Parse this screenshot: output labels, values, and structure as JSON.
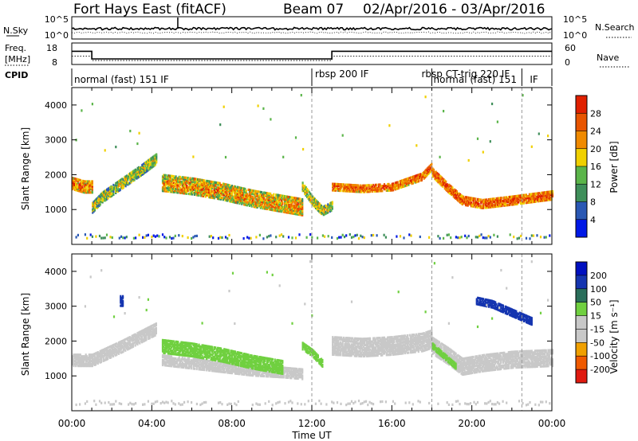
{
  "title": {
    "station": "Fort Hays East (fitACF)",
    "beam": "Beam 07",
    "dates": "02/Apr/2016 - 03/Apr/2016"
  },
  "colors": {
    "power": [
      "#0018e6",
      "#2a58b4",
      "#3f8f5a",
      "#5bb54a",
      "#f0d000",
      "#f08a00",
      "#e85500",
      "#e02000"
    ],
    "velocity": [
      "#e01a10",
      "#f05a00",
      "#f0a000",
      "#c8c8c8",
      "#c8c8c8",
      "#70d040",
      "#2a6e5a",
      "#1535b0",
      "#0010c0"
    ],
    "ground_scatter": "#c6c6c6"
  },
  "chart_data": [
    {
      "type": "line",
      "name": "nsky-nsearch",
      "ylabel_left": "N.Sky",
      "ylabel_right": "N.Search",
      "yticks_left": [
        "10^5",
        "10^0"
      ],
      "yticks_right": [
        "10^5",
        "10^0"
      ],
      "xlim": [
        0,
        24
      ]
    },
    {
      "type": "line",
      "name": "freq-nave",
      "ylabel_left": "Freq.",
      "ylabel_left_unit": "[MHz]",
      "ylabel_right": "Nave",
      "yticks_left": [
        "18",
        "8"
      ],
      "yticks_right": [
        "60",
        "0"
      ],
      "xlim": [
        0,
        24
      ],
      "ylim_left": [
        8,
        18
      ],
      "ylim_right": [
        0,
        60
      ],
      "freq": {
        "x": [
          0,
          1.0,
          1.0,
          13.0,
          13.0,
          24
        ],
        "y": [
          14.5,
          14.5,
          10.5,
          10.5,
          14.5,
          14.5
        ]
      },
      "nave": {
        "x": [
          0,
          1.0,
          1.0,
          13.0,
          13.0,
          24
        ],
        "y": [
          24,
          24,
          10,
          10,
          24,
          24
        ]
      }
    },
    {
      "type": "table",
      "name": "cpid",
      "label": "CPID",
      "segments": [
        {
          "start": 0,
          "end": 12,
          "text": "normal (fast) 151 IF"
        },
        {
          "start": 12,
          "end": 18,
          "text": "rbsp 200 IF"
        },
        {
          "start": 18,
          "end": 22.5,
          "text": "rbsp CT-trig 220 IF"
        },
        {
          "start": 18,
          "end": 22.5,
          "text": "normal (fast) 151"
        },
        {
          "start": 22.5,
          "end": 24,
          "text": "IF"
        }
      ],
      "boundaries": [
        12,
        18,
        22.5
      ]
    },
    {
      "type": "heatmap",
      "name": "power",
      "ylabel": "Slant Range [km]",
      "yticks": [
        1000,
        2000,
        3000,
        4000
      ],
      "xticks": [
        "00:00",
        "04:00",
        "08:00",
        "12:00",
        "16:00",
        "20:00",
        "00:00"
      ],
      "xlim": [
        0,
        24
      ],
      "ylim": [
        0,
        4500
      ],
      "colorbar": {
        "label": "Power [dB]",
        "ticks": [
          "28",
          "24",
          "20",
          "16",
          "12",
          "8",
          "4"
        ],
        "levels": [
          0,
          4,
          8,
          12,
          16,
          20,
          24,
          28,
          32
        ]
      },
      "dashed_x": [
        12,
        18,
        22.5
      ],
      "bands": [
        {
          "x": [
            0,
            0.3,
            0.6,
            0.9,
            1.0
          ],
          "y": [
            1800,
            1750,
            1700,
            1700,
            1700
          ],
          "w": 350,
          "v": 22,
          "spread": 8
        },
        {
          "x": [
            1.0,
            1.5,
            2.5,
            3.5,
            4.2
          ],
          "y": [
            1100,
            1400,
            1800,
            2200,
            2500
          ],
          "w": 300,
          "v": 14,
          "spread": 7
        },
        {
          "x": [
            4.5,
            6.0,
            7.5,
            9.0,
            10.5,
            11.5
          ],
          "y": [
            1800,
            1700,
            1550,
            1350,
            1200,
            1100
          ],
          "w": 450,
          "v": 20,
          "spread": 8
        },
        {
          "x": [
            11.5,
            12.0,
            12.5,
            13.0
          ],
          "y": [
            1700,
            1300,
            1000,
            1150
          ],
          "w": 250,
          "v": 16,
          "spread": 7
        },
        {
          "x": [
            13.0,
            14.5,
            16.0,
            17.5,
            18.0
          ],
          "y": [
            1700,
            1650,
            1700,
            2000,
            2300
          ],
          "w": 220,
          "v": 24,
          "spread": 6
        },
        {
          "x": [
            18.0,
            18.8,
            19.5,
            20.5,
            22.0,
            24
          ],
          "y": [
            2100,
            1650,
            1300,
            1200,
            1300,
            1450
          ],
          "w": 240,
          "v": 25,
          "spread": 6
        }
      ],
      "floor": {
        "x": [
          0,
          24
        ],
        "y": [
          200,
          320
        ],
        "v": 10
      }
    },
    {
      "type": "heatmap",
      "name": "velocity",
      "ylabel": "Slant Range [km]",
      "xlabel": "Time UT",
      "yticks": [
        1000,
        2000,
        3000,
        4000
      ],
      "xticks": [
        "00:00",
        "04:00",
        "08:00",
        "12:00",
        "16:00",
        "20:00",
        "00:00"
      ],
      "xlim": [
        0,
        24
      ],
      "ylim": [
        0,
        4500
      ],
      "colorbar": {
        "label": "Velocity [m s⁻¹]",
        "ticks": [
          "200",
          "100",
          "50",
          "15",
          "-15",
          "-50",
          "-100",
          "-200"
        ],
        "levels": [
          -250,
          -200,
          -100,
          -50,
          -15,
          15,
          50,
          100,
          200,
          250
        ]
      },
      "dashed_x": [
        12,
        18,
        22.5
      ],
      "bands": [
        {
          "x": [
            0,
            1.0,
            2.5,
            4.2
          ],
          "y": [
            1500,
            1500,
            1900,
            2400
          ],
          "w": 350,
          "v": 0,
          "spread": 10
        },
        {
          "x": [
            4.5,
            6.0,
            7.5,
            9.0,
            10.5,
            11.5
          ],
          "y": [
            1500,
            1400,
            1300,
            1200,
            1150,
            1100
          ],
          "w": 300,
          "v": 0,
          "spread": 10
        },
        {
          "x": [
            4.5,
            6.0,
            7.5,
            9.0,
            10.5
          ],
          "y": [
            1900,
            1800,
            1650,
            1450,
            1300
          ],
          "w": 400,
          "v": 40,
          "spread": 10
        },
        {
          "x": [
            11.5,
            12.0,
            12.5
          ],
          "y": [
            1900,
            1700,
            1400
          ],
          "w": 200,
          "v": 40,
          "spread": 10
        },
        {
          "x": [
            13.0,
            14.5,
            16.0,
            17.5,
            18.0
          ],
          "y": [
            1900,
            1850,
            1900,
            2000,
            2100
          ],
          "w": 500,
          "v": 0,
          "spread": 10
        },
        {
          "x": [
            18.0,
            18.8,
            19.5,
            20.5,
            22.0,
            24
          ],
          "y": [
            1900,
            1600,
            1300,
            1400,
            1500,
            1550
          ],
          "w": 450,
          "v": 0,
          "spread": 10
        },
        {
          "x": [
            18.0,
            18.6,
            19.2
          ],
          "y": [
            1900,
            1600,
            1300
          ],
          "w": 150,
          "v": 40,
          "spread": 10
        },
        {
          "x": [
            20.2,
            21.0,
            22.0,
            23.0
          ],
          "y": [
            3200,
            3100,
            2850,
            2600
          ],
          "w": 200,
          "v": 150,
          "spread": 40
        },
        {
          "x": [
            2.4,
            2.55
          ],
          "y": [
            3200,
            3200
          ],
          "w": 300,
          "v": 180,
          "spread": 20
        }
      ],
      "floor": {
        "x": [
          0,
          24
        ],
        "y": [
          200,
          320
        ],
        "v": -30
      }
    }
  ]
}
